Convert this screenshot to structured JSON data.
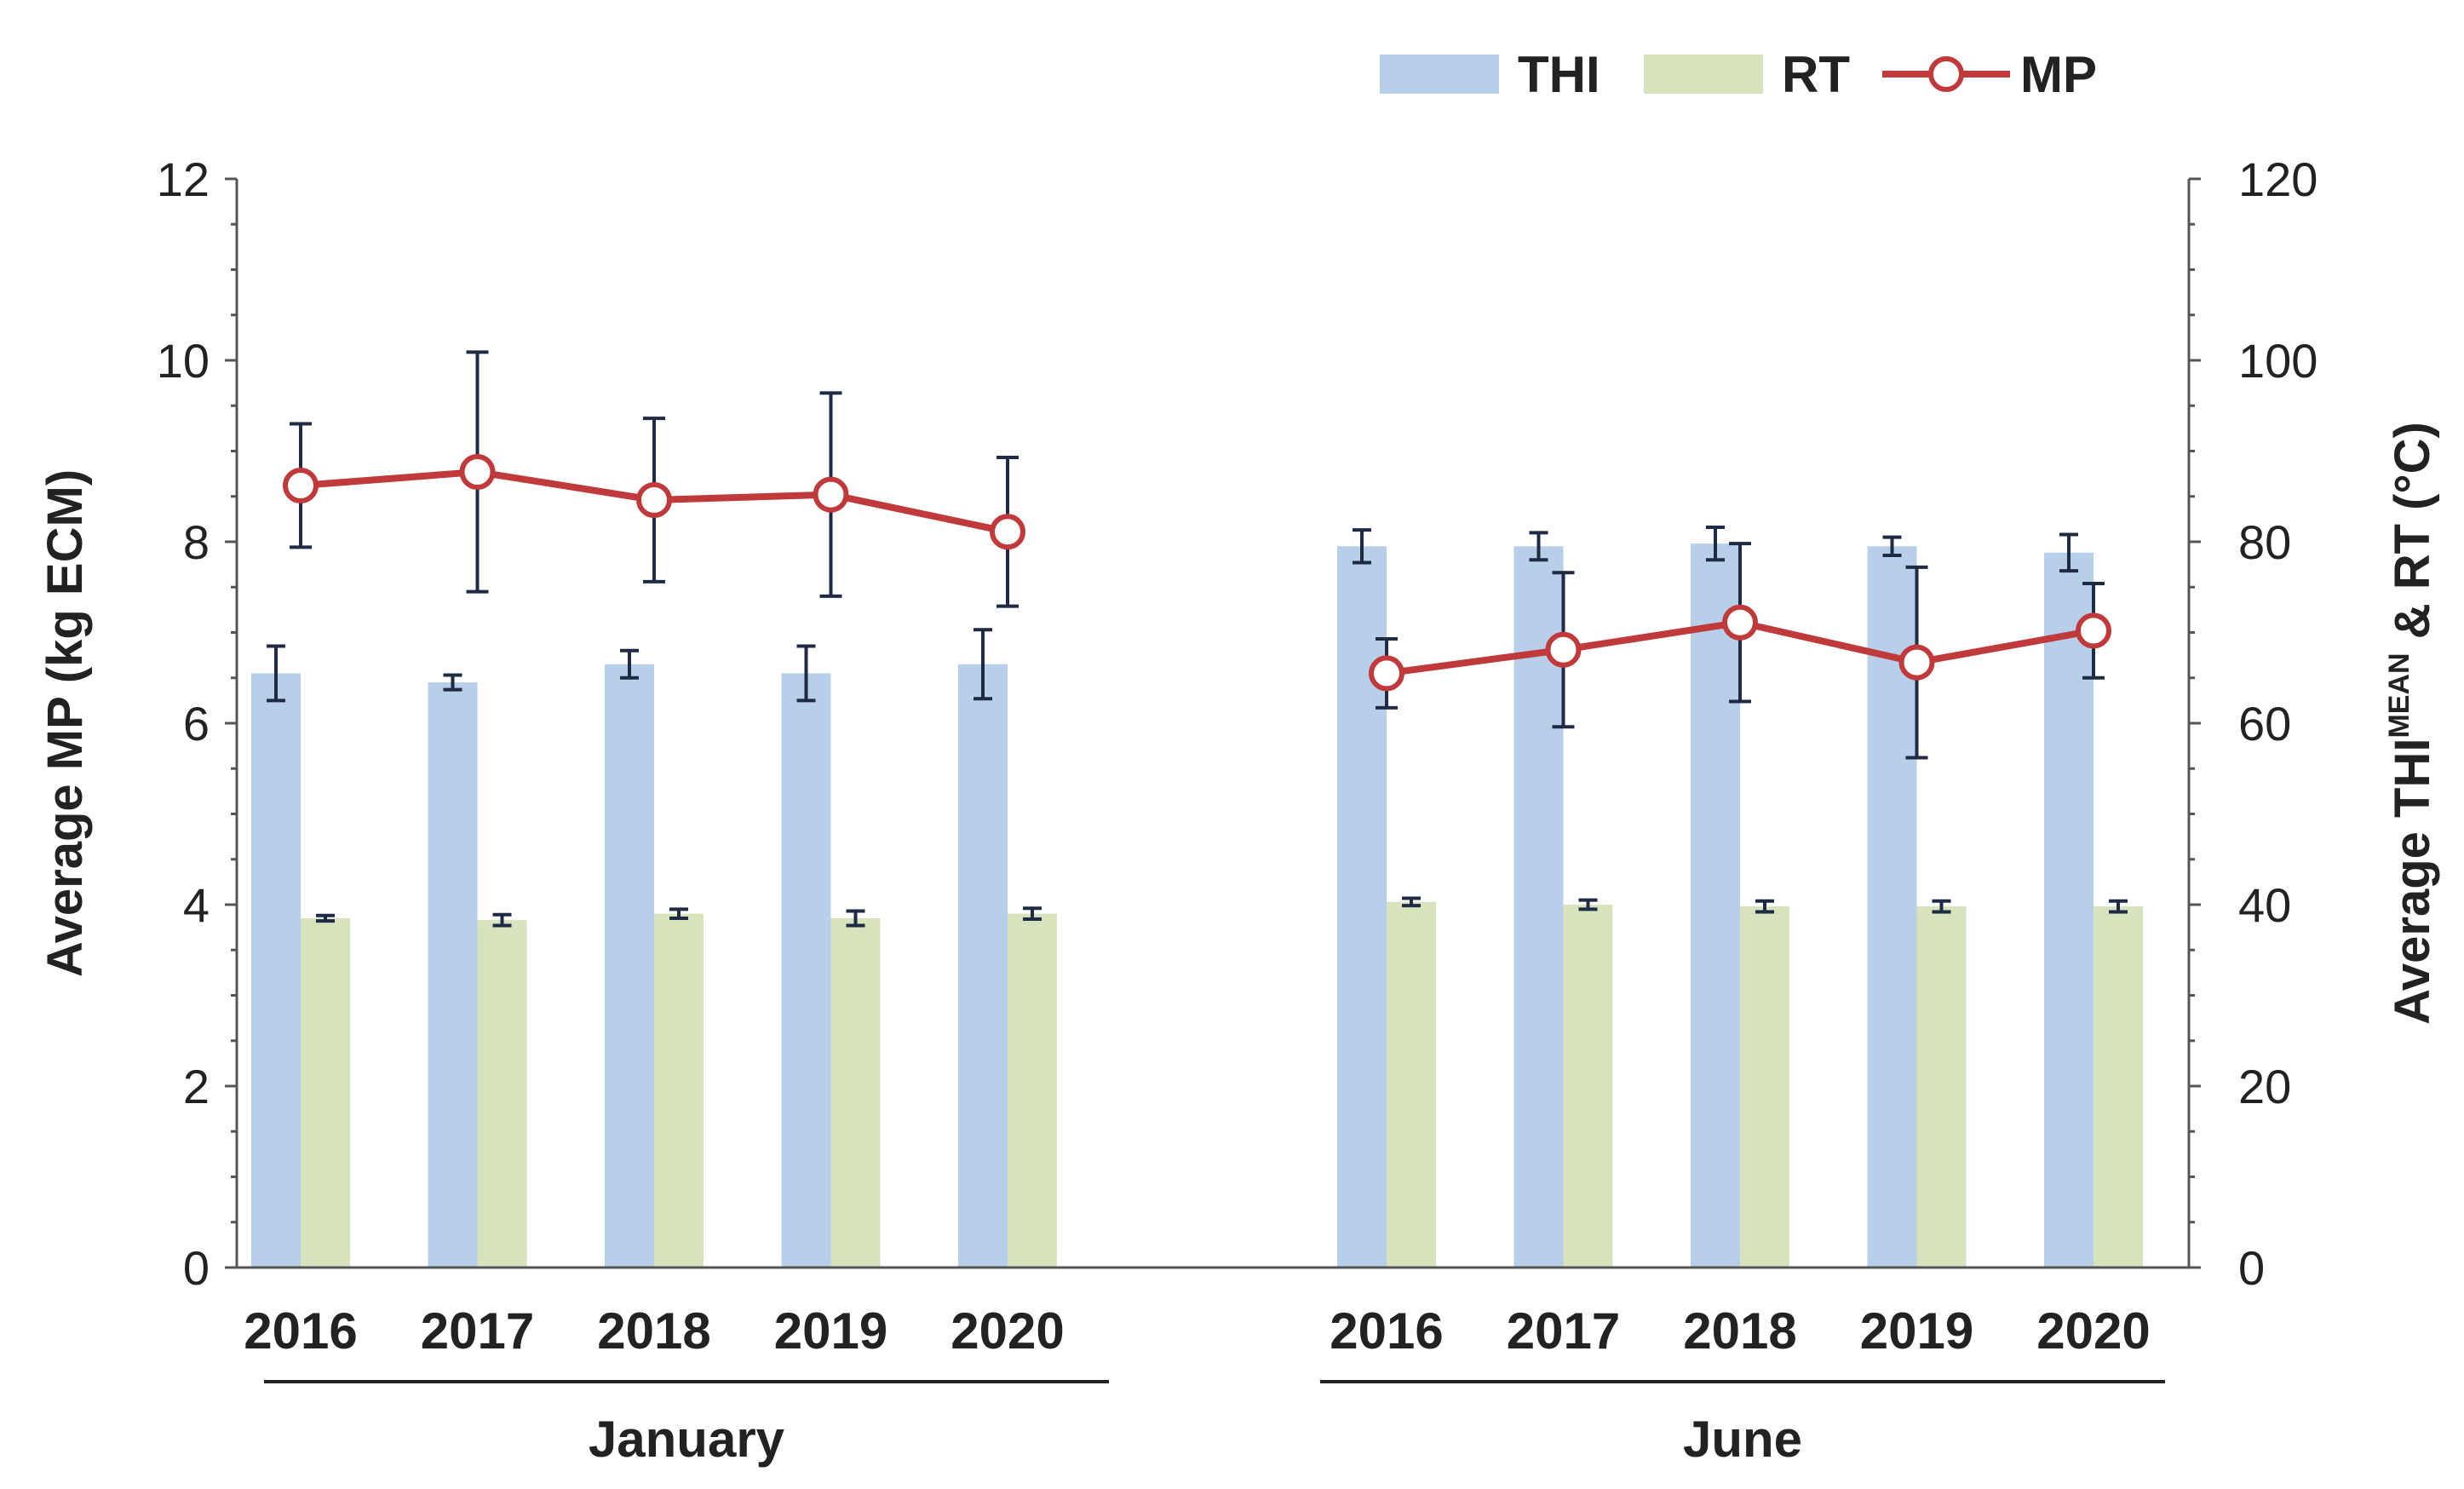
{
  "chart_data": {
    "type": "bar",
    "title": "",
    "categories": [
      "2016",
      "2017",
      "2018",
      "2019",
      "2020",
      "2016",
      "2017",
      "2018",
      "2019",
      "2020"
    ],
    "groups": [
      {
        "label": "January",
        "category_range": [
          0,
          4
        ]
      },
      {
        "label": "June",
        "category_range": [
          5,
          9
        ]
      }
    ],
    "ylabel": "Average MP (kg ECM)",
    "ylim": [
      0,
      12
    ],
    "yticks": [
      "0",
      "2",
      "4",
      "6",
      "8",
      "10",
      "12"
    ],
    "y2label": {
      "prefix": "Average THI",
      "superscript": "MEAN",
      "suffix": " & RT (°C)"
    },
    "y2lim": [
      0,
      120
    ],
    "y2ticks": [
      "0",
      "20",
      "40",
      "60",
      "80",
      "100",
      "120"
    ],
    "series": [
      {
        "name": "THI",
        "kind": "bar",
        "axis": "right",
        "color": "#b8cfe9",
        "values": [
          65.5,
          64.5,
          66.5,
          65.5,
          66.5,
          79.5,
          79.5,
          79.8,
          79.5,
          78.8
        ],
        "errors": [
          3.0,
          0.8,
          1.5,
          3.0,
          3.8,
          1.8,
          1.5,
          1.8,
          1.0,
          2.0
        ]
      },
      {
        "name": "RT",
        "kind": "bar",
        "axis": "right",
        "color": "#d6e3bc",
        "values": [
          38.5,
          38.3,
          39.0,
          38.5,
          39.0,
          40.3,
          40.0,
          39.8,
          39.8,
          39.8
        ],
        "errors": [
          0.3,
          0.6,
          0.5,
          0.8,
          0.6,
          0.4,
          0.5,
          0.6,
          0.6,
          0.6
        ]
      },
      {
        "name": "MP",
        "kind": "line",
        "axis": "left",
        "color": "#c0393b",
        "values": [
          8.62,
          8.77,
          8.46,
          8.52,
          8.11,
          6.55,
          6.81,
          7.11,
          6.67,
          7.02
        ],
        "errors": [
          0.68,
          1.32,
          0.9,
          1.12,
          0.82,
          0.38,
          0.85,
          0.87,
          1.05,
          0.52
        ]
      }
    ],
    "legend": [
      "THI",
      "RT",
      "MP"
    ],
    "legend_position": "top-right",
    "grid": false
  }
}
